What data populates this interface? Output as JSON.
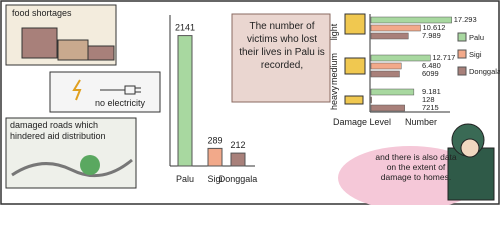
{
  "panels": {
    "food": "food shortages",
    "electricity": "no electricity",
    "roads": "damaged roads which hindered aid distribution",
    "note": "The number of victims who lost their lives in Palu is recorded,",
    "bubble": "and there is also data on the extent of damage to homes."
  },
  "chart_data": [
    {
      "type": "bar",
      "categories": [
        "Palu",
        "Sigi",
        "Donggala"
      ],
      "values": [
        2141,
        289,
        212
      ],
      "colors": [
        "#a8d8a0",
        "#f2a98a",
        "#a8807a"
      ],
      "ylim": [
        0,
        2200
      ]
    },
    {
      "type": "barh",
      "categories": [
        "light",
        "medium",
        "heavy"
      ],
      "y_label": "Damage Level",
      "x_label": "Number",
      "xlim": [
        0,
        18000
      ],
      "series": [
        {
          "name": "Palu",
          "color": "#a8d8a0",
          "values": [
            17293,
            12717,
            9181
          ],
          "value_labels": [
            "17.293",
            "12.717",
            "9.181"
          ]
        },
        {
          "name": "Sigi",
          "color": "#f2a98a",
          "values": [
            10612,
            6480,
            128
          ],
          "value_labels": [
            "10.612",
            "6.480",
            "128"
          ]
        },
        {
          "name": "Donggala",
          "color": "#a8807a",
          "values": [
            7989,
            6099,
            7215
          ],
          "value_labels": [
            "7.989",
            "6099",
            "7215"
          ]
        }
      ]
    }
  ]
}
